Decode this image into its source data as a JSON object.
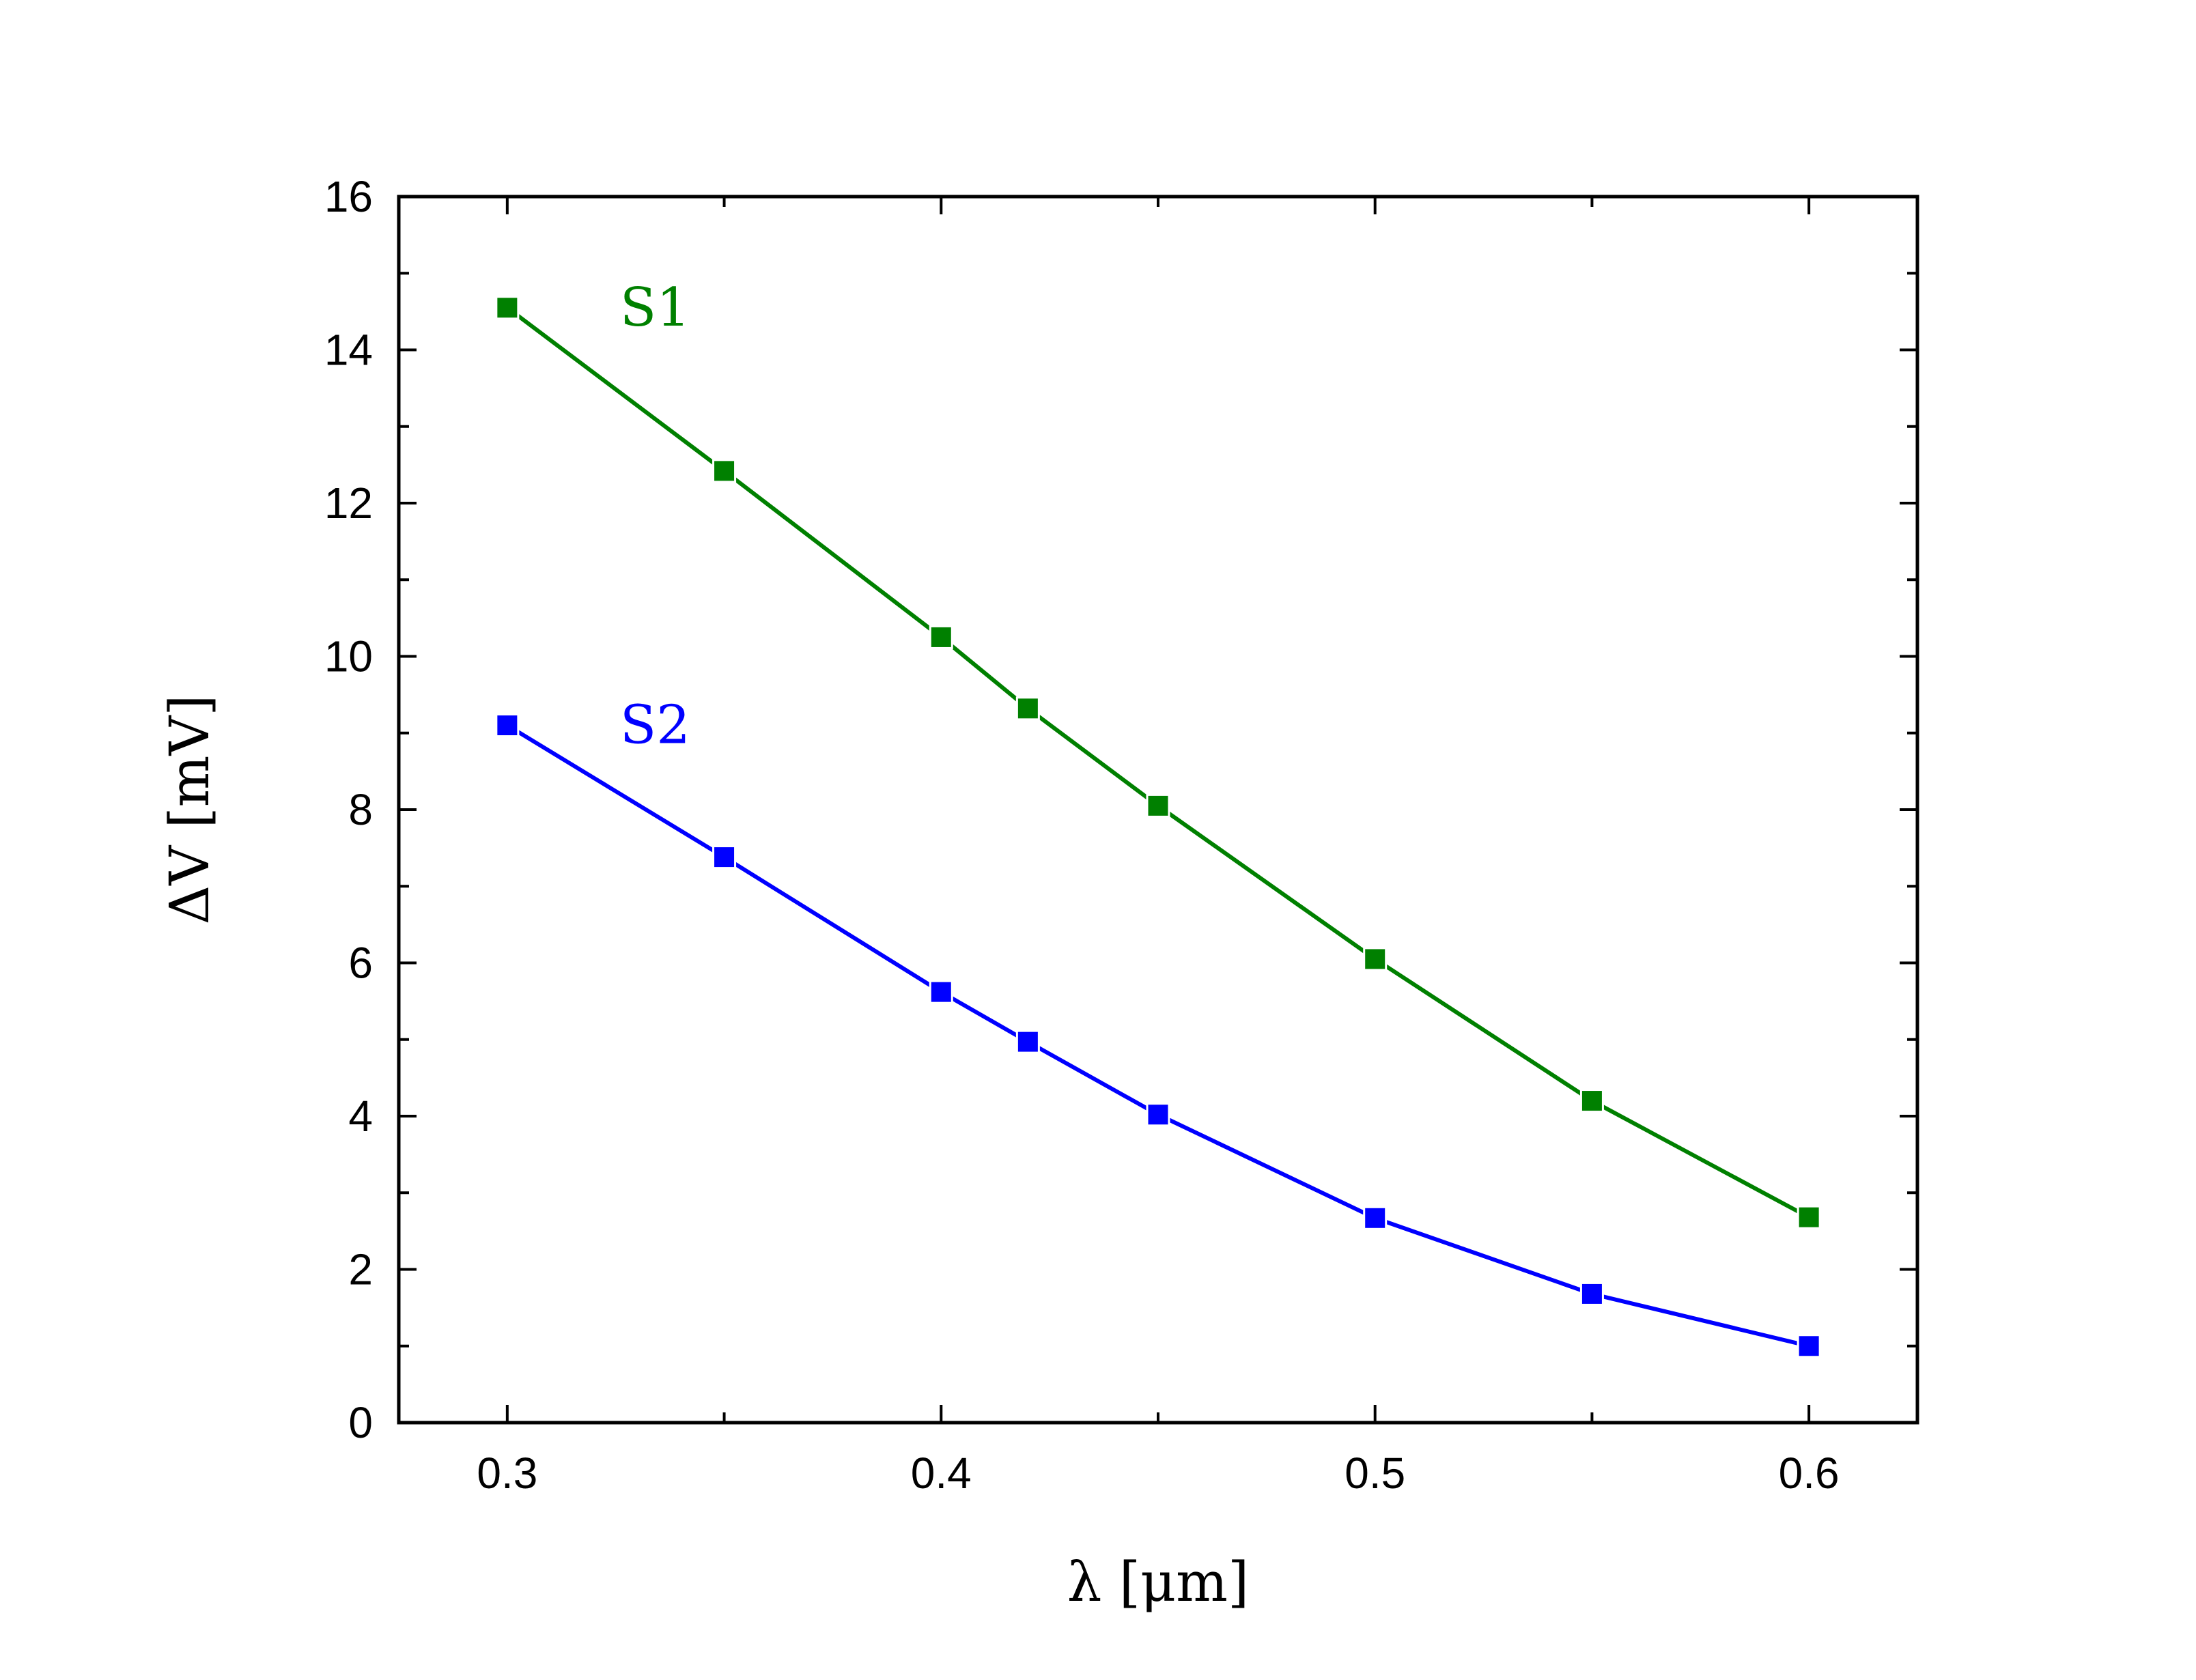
{
  "chart_data": {
    "type": "line",
    "xlabel": "λ [μm]",
    "ylabel": "ΔV [mV]",
    "xlim": [
      0.275,
      0.625
    ],
    "ylim": [
      0,
      16
    ],
    "x_ticks": [
      "0.3",
      "0.4",
      "0.5",
      "0.6"
    ],
    "x_tick_values": [
      0.3,
      0.4,
      0.5,
      0.6
    ],
    "y_ticks": [
      "0",
      "2",
      "4",
      "6",
      "8",
      "10",
      "12",
      "14",
      "16"
    ],
    "y_tick_values": [
      0,
      2,
      4,
      6,
      8,
      10,
      12,
      14,
      16
    ],
    "x_minor_tick_values": [
      0.35,
      0.45,
      0.55
    ],
    "y_minor_tick_values": [
      1,
      3,
      5,
      7,
      9,
      11,
      13,
      15
    ],
    "grid": false,
    "x": [
      0.3,
      0.35,
      0.4,
      0.42,
      0.45,
      0.5,
      0.55,
      0.6
    ],
    "series": [
      {
        "name": "S1",
        "color": "#008000",
        "marker": "square",
        "values": [
          14.55,
          12.42,
          10.25,
          9.32,
          8.05,
          6.05,
          4.2,
          2.68
        ]
      },
      {
        "name": "S2",
        "color": "#0000ff",
        "marker": "square",
        "values": [
          9.1,
          7.38,
          5.62,
          4.97,
          4.02,
          2.67,
          1.68,
          1.0
        ]
      }
    ]
  }
}
